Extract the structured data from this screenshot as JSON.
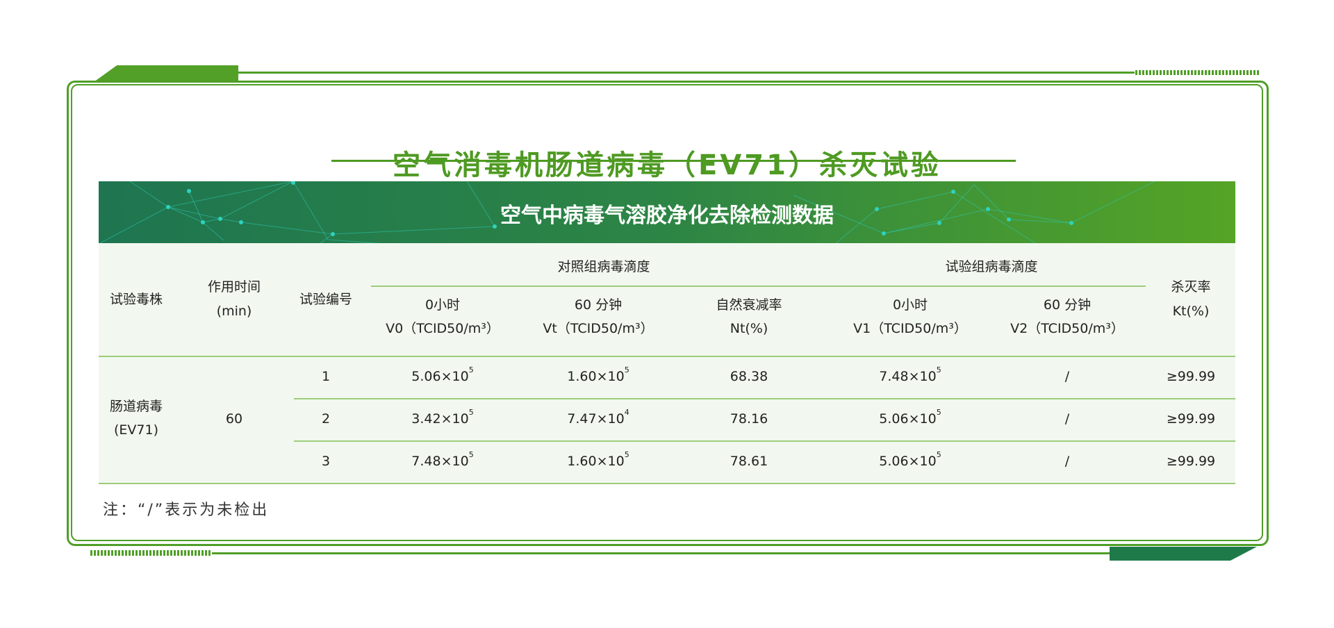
{
  "title": "空气消毒机肠道病毒（EV71）杀灭试验",
  "banner": "空气中病毒气溶胶净化去除检测数据",
  "colors": {
    "primary_green": "#4e9a22",
    "dark_green": "#1f7a4a",
    "table_bg": "#f2f8ef",
    "rule": "#9ccc7c"
  },
  "headers": {
    "strain": "试验毒株",
    "time_l1": "作用时间",
    "time_l2": "(min)",
    "trial_no": "试验编号",
    "control_group": "对照组病毒滴度",
    "test_group": "试验组病毒滴度",
    "v0_l1": "0小时",
    "v0_l2": "V0（TCID50/m³）",
    "vt_l1": "60 分钟",
    "vt_l2": "Vt（TCID50/m³）",
    "nt_l1": "自然衰减率",
    "nt_l2": "Nt(%)",
    "v1_l1": "0小时",
    "v1_l2": "V1（TCID50/m³）",
    "v2_l1": "60 分钟",
    "v2_l2": "V2（TCID50/m³）",
    "kt_l1": "杀灭率",
    "kt_l2": "Kt(%)"
  },
  "strain_l1": "肠道病毒",
  "strain_l2": "(EV71)",
  "time_value": "60",
  "rows": [
    {
      "no": "1",
      "v0": "5.06×10",
      "v0_exp": "5",
      "vt": "1.60×10",
      "vt_exp": "5",
      "nt": "68.38",
      "v1": "7.48×10",
      "v1_exp": "5",
      "v2": "/",
      "kt": "≥99.99"
    },
    {
      "no": "2",
      "v0": "3.42×10",
      "v0_exp": "5",
      "vt": "7.47×10",
      "vt_exp": "4",
      "nt": "78.16",
      "v1": "5.06×10",
      "v1_exp": "5",
      "v2": "/",
      "kt": "≥99.99"
    },
    {
      "no": "3",
      "v0": "7.48×10",
      "v0_exp": "5",
      "vt": "1.60×10",
      "vt_exp": "5",
      "nt": "78.61",
      "v1": "5.06×10",
      "v1_exp": "5",
      "v2": "/",
      "kt": "≥99.99"
    }
  ],
  "note": "注：“/”表示为未检出"
}
